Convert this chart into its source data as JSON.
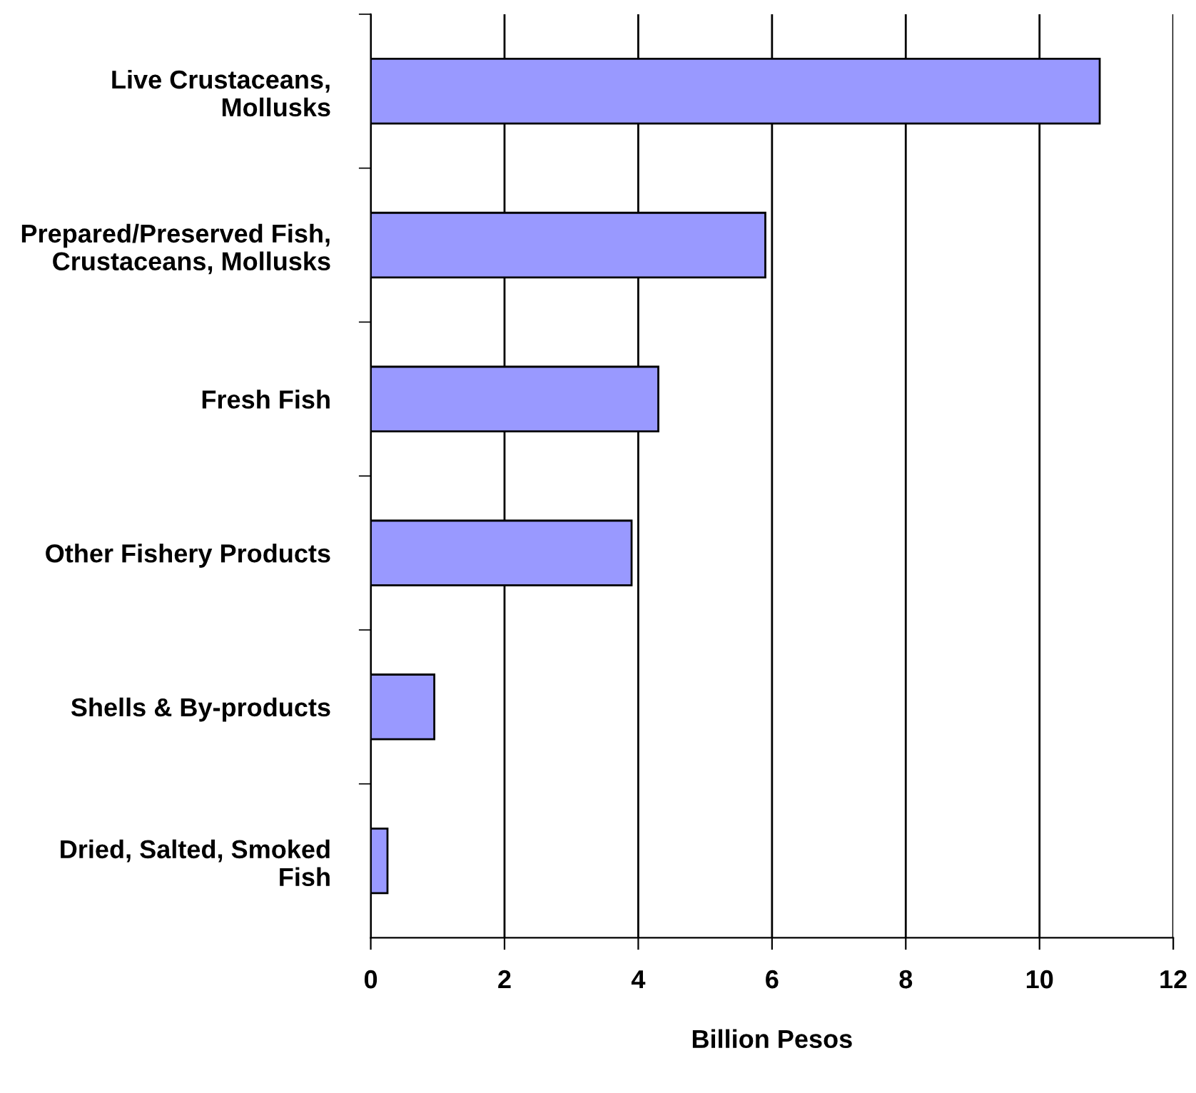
{
  "chart_data": {
    "type": "bar",
    "orientation": "horizontal",
    "xlabel": "Billion Pesos",
    "categories": [
      "Live Crustaceans, Mollusks",
      "Prepared/Preserved Fish, Crustaceans, Mollusks",
      "Fresh Fish",
      "Other Fishery Products",
      "Shells & By-products",
      "Dried, Salted, Smoked Fish"
    ],
    "values": [
      10.9,
      5.9,
      4.3,
      3.9,
      0.95,
      0.25
    ],
    "color": "#9999ff",
    "xlim": [
      0,
      12
    ],
    "xticks": [
      0,
      2,
      4,
      6,
      8,
      10,
      12
    ],
    "grid": "x",
    "legend": false
  }
}
